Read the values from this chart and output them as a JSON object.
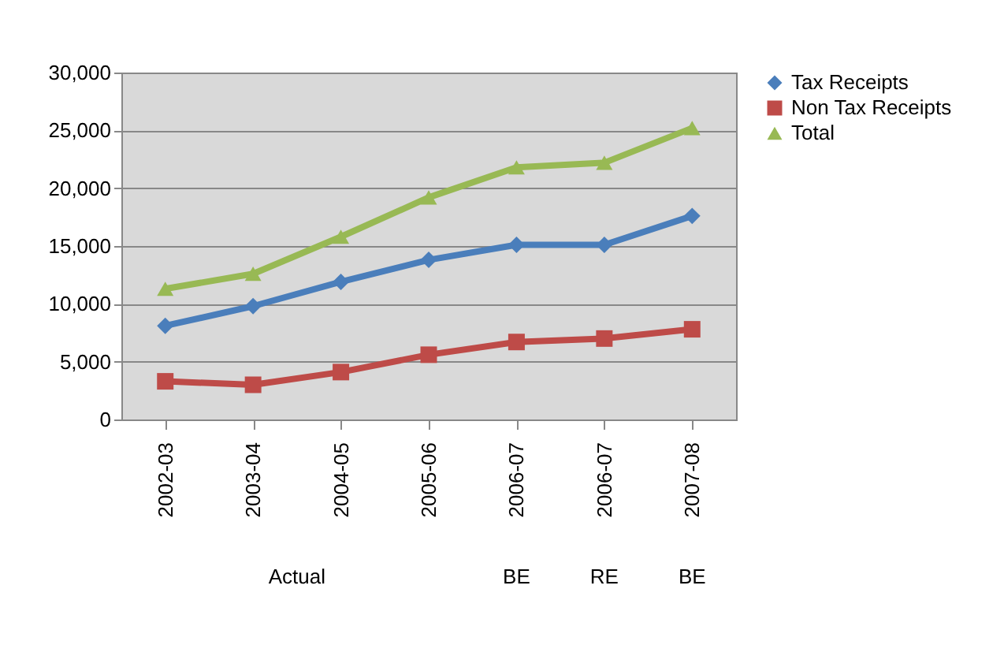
{
  "chart_data": {
    "type": "line",
    "categories": [
      "2002-03",
      "2003-04",
      "2004-05",
      "2005-06",
      "2006-07",
      "2006-07",
      "2007-08"
    ],
    "series": [
      {
        "name": "Tax Receipts",
        "color": "#4a7ebb",
        "marker": "diamond",
        "values": [
          8100,
          9800,
          11900,
          13800,
          15100,
          15100,
          17600
        ]
      },
      {
        "name": "Non Tax Receipts",
        "color": "#be4b48",
        "marker": "square",
        "values": [
          3300,
          3000,
          4100,
          5600,
          6700,
          7000,
          7800
        ]
      },
      {
        "name": "Total",
        "color": "#98b954",
        "marker": "triangle",
        "values": [
          11300,
          12600,
          15800,
          19200,
          21800,
          22200,
          25200
        ]
      }
    ],
    "ylim": [
      0,
      30000
    ],
    "yticks": [
      {
        "value": 0,
        "label": "0"
      },
      {
        "value": 5000,
        "label": "5,000"
      },
      {
        "value": 10000,
        "label": "10,000"
      },
      {
        "value": 15000,
        "label": "15,000"
      },
      {
        "value": 20000,
        "label": "20,000"
      },
      {
        "value": 25000,
        "label": "25,000"
      },
      {
        "value": 30000,
        "label": "30,000"
      }
    ],
    "annotations": [
      "Actual",
      "BE",
      "RE",
      "BE"
    ],
    "grid": "y",
    "legend": "right",
    "line_style": "solid"
  }
}
